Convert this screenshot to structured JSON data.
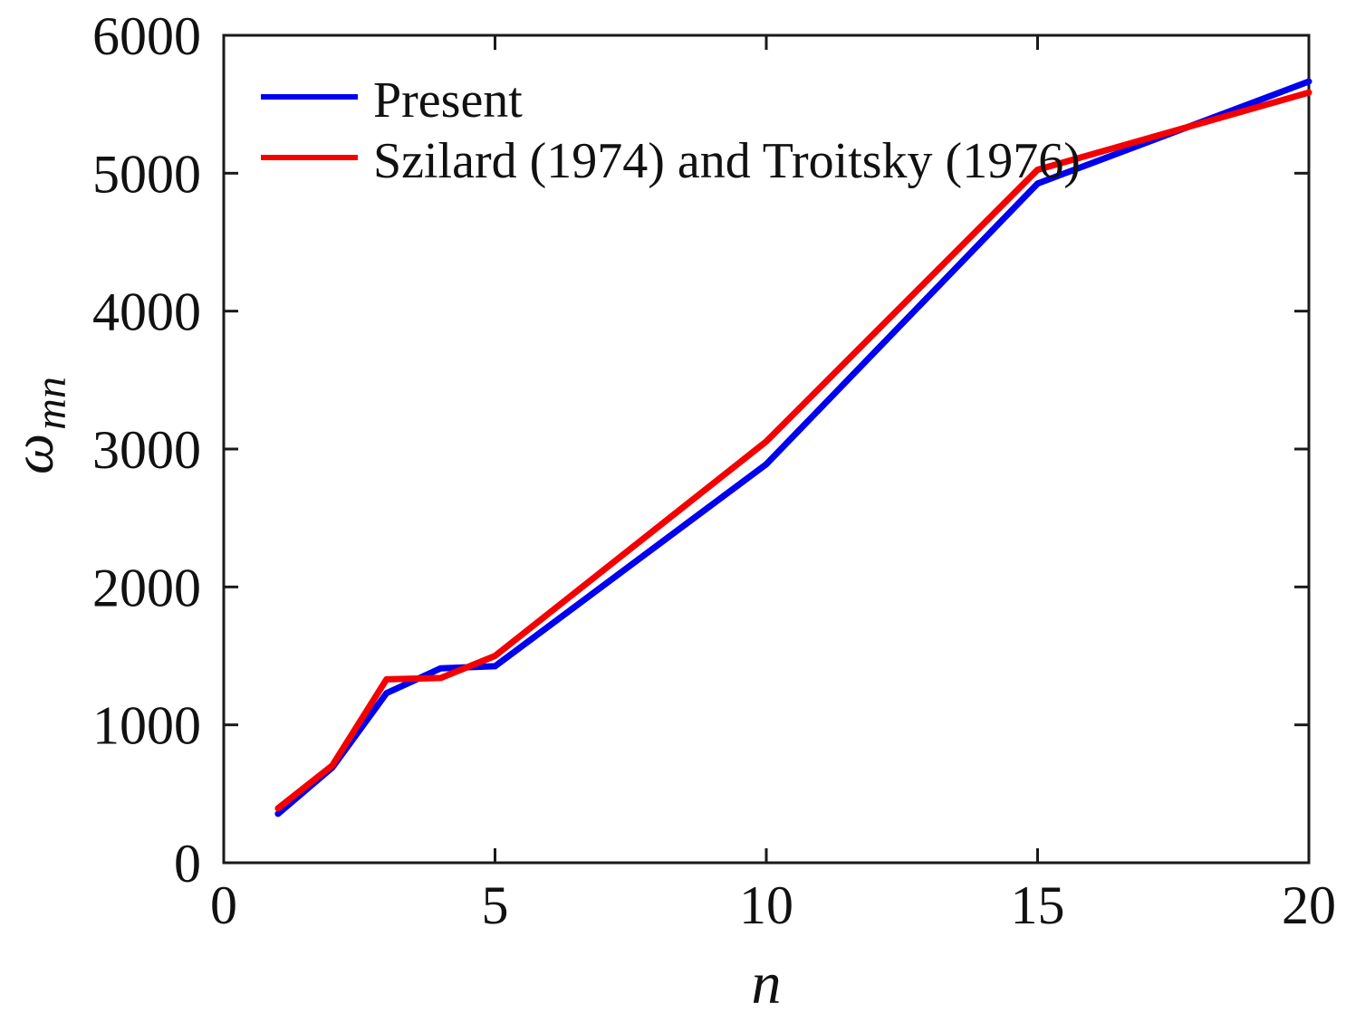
{
  "figure": {
    "background": "#ffffff",
    "axis_color": "#1a1a1a",
    "text_color": "#111111"
  },
  "chart_data": {
    "type": "line",
    "title": "",
    "xlabel": "n",
    "ylabel_base": "ω",
    "ylabel_subscript": "mn",
    "xlim": [
      0,
      20
    ],
    "ylim": [
      0,
      6000
    ],
    "x_ticks": [
      0,
      5,
      10,
      15,
      20
    ],
    "y_ticks": [
      0,
      1000,
      2000,
      3000,
      4000,
      5000,
      6000
    ],
    "grid": false,
    "legend_position": "top-left-inside",
    "x": [
      1,
      2,
      3,
      4,
      5,
      10,
      15,
      20
    ],
    "series": [
      {
        "name": "Present",
        "color": "#0000f0",
        "values": [
          355,
          690,
          1230,
          1410,
          1425,
          2890,
          4925,
          5665
        ]
      },
      {
        "name": "Szilard (1974) and Troitsky (1976)",
        "color": "#f50000",
        "values": [
          395,
          705,
          1330,
          1340,
          1500,
          3055,
          5025,
          5585
        ]
      }
    ]
  }
}
